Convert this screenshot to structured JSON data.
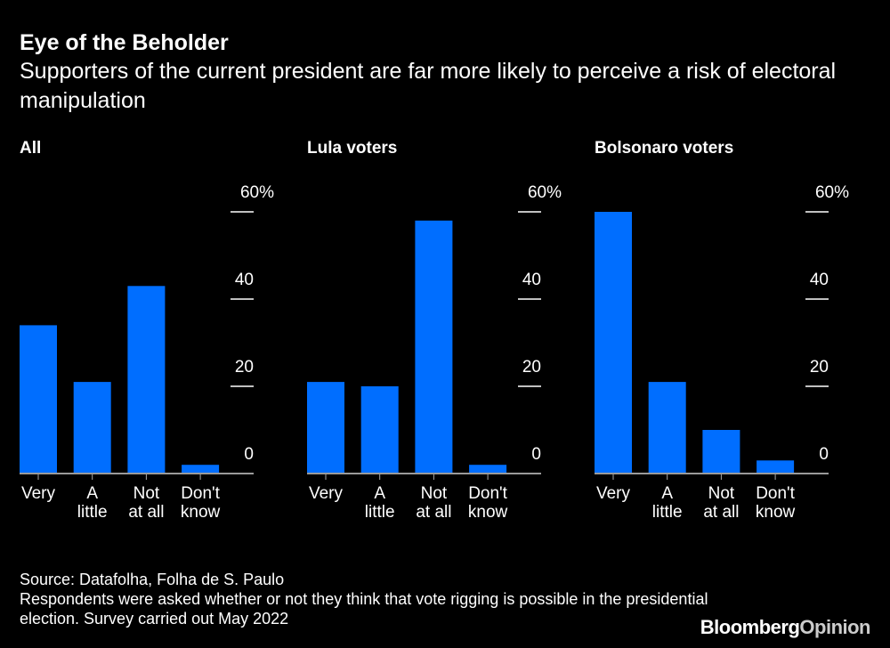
{
  "header": {
    "title": "Eye of the Beholder",
    "subtitle": "Supporters of the current president are far more likely to perceive a risk of electoral manipulation"
  },
  "chart_data": [
    {
      "type": "bar",
      "title": "All",
      "categories": [
        [
          "Very"
        ],
        [
          "A",
          "little"
        ],
        [
          "Not",
          "at all"
        ],
        [
          "Don't",
          "know"
        ]
      ],
      "values": [
        34,
        21,
        43,
        2
      ],
      "ylim": [
        0,
        60
      ],
      "yticks": [
        "0",
        "20",
        "40",
        "60%"
      ],
      "color": "#006EFF"
    },
    {
      "type": "bar",
      "title": "Lula voters",
      "categories": [
        [
          "Very"
        ],
        [
          "A",
          "little"
        ],
        [
          "Not",
          "at all"
        ],
        [
          "Don't",
          "know"
        ]
      ],
      "values": [
        21,
        20,
        58,
        2
      ],
      "ylim": [
        0,
        60
      ],
      "yticks": [
        "0",
        "20",
        "40",
        "60%"
      ],
      "color": "#006EFF"
    },
    {
      "type": "bar",
      "title": "Bolsonaro voters",
      "categories": [
        [
          "Very"
        ],
        [
          "A",
          "little"
        ],
        [
          "Not",
          "at all"
        ],
        [
          "Don't",
          "know"
        ]
      ],
      "values": [
        60,
        21,
        10,
        3
      ],
      "ylim": [
        0,
        60
      ],
      "yticks": [
        "0",
        "20",
        "40",
        "60%"
      ],
      "color": "#006EFF"
    }
  ],
  "footer": {
    "source": "Source: Datafolha, Folha de S. Paulo",
    "note": "Respondents were asked whether or not they think that vote rigging is possible in the presidential election. Survey carried out May 2022"
  },
  "logo": {
    "brand": "Bloomberg",
    "suffix": "Opinion"
  }
}
